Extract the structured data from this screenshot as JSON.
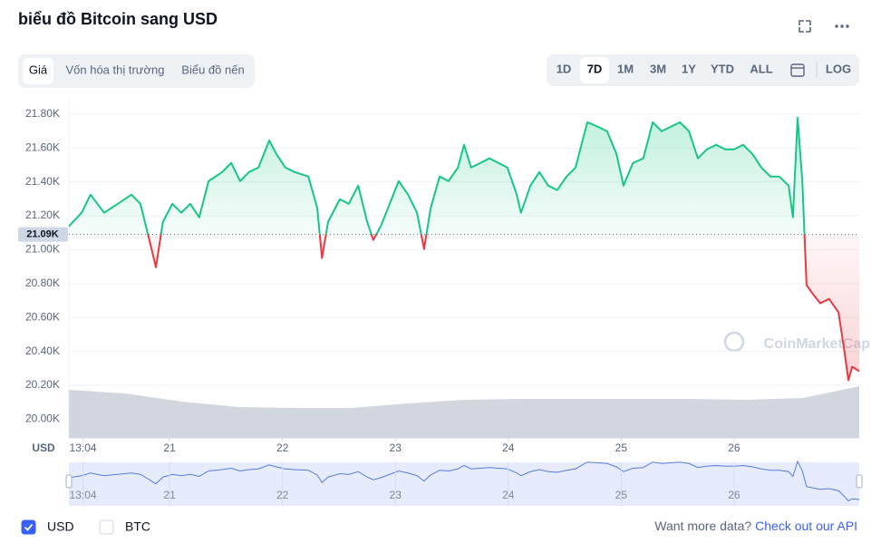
{
  "ui": {
    "title": "biểu đồ Bitcoin sang USD",
    "tabs": [
      "Giá",
      "Vốn hóa thị trường",
      "Biểu đồ nến"
    ],
    "active_tab": 0,
    "ranges": [
      "1D",
      "7D",
      "1M",
      "3M",
      "1Y",
      "YTD",
      "ALL"
    ],
    "active_range": 1,
    "log": "LOG",
    "currencies": [
      {
        "label": "USD",
        "checked": true
      },
      {
        "label": "BTC",
        "checked": false
      }
    ],
    "more_text": "Want more data?",
    "api_link": "Check out our API",
    "watermark": "CoinMarketCap"
  },
  "chart_data": {
    "type": "line",
    "up_color": "#16c784",
    "down_color": "#ea3943",
    "volume_color": "#d1d6df",
    "grid": true,
    "y_axis_label": "USD",
    "baseline": {
      "value": 21090,
      "label": "21.09K"
    },
    "xlim": [
      0,
      168
    ],
    "xticks": [
      {
        "value": 3,
        "label": "13:04"
      },
      {
        "value": 21.4,
        "label": "21"
      },
      {
        "value": 45.4,
        "label": "22"
      },
      {
        "value": 69.4,
        "label": "23"
      },
      {
        "value": 93.4,
        "label": "24"
      },
      {
        "value": 117.4,
        "label": "25"
      },
      {
        "value": 141.4,
        "label": "26"
      }
    ],
    "ylim": [
      19890,
      21885
    ],
    "yticks": [
      {
        "value": 20000,
        "label": "20.00K"
      },
      {
        "value": 20200,
        "label": "20.20K"
      },
      {
        "value": 20400,
        "label": "20.40K"
      },
      {
        "value": 20600,
        "label": "20.60K"
      },
      {
        "value": 20800,
        "label": "20.80K"
      },
      {
        "value": 21000,
        "label": "21.00K"
      },
      {
        "value": 21200,
        "label": "21.20K"
      },
      {
        "value": 21400,
        "label": "21.40K"
      },
      {
        "value": 21600,
        "label": "21.60K"
      },
      {
        "value": 21800,
        "label": "21.80K"
      }
    ],
    "x": [
      0,
      2.7,
      4.6,
      7.5,
      10.4,
      13.3,
      15.2,
      17.1,
      18.5,
      20.0,
      22.0,
      23.9,
      25.8,
      27.7,
      29.7,
      32.6,
      34.5,
      36.4,
      38.3,
      40.3,
      42.6,
      44.1,
      46.0,
      48.0,
      50.9,
      52.8,
      53.8,
      55.1,
      57.6,
      59.5,
      61.5,
      63.4,
      64.7,
      66.3,
      68.2,
      70.1,
      72.1,
      74.0,
      75.5,
      76.9,
      78.8,
      80.7,
      82.7,
      84.0,
      85.5,
      87.5,
      89.4,
      91.3,
      93.2,
      95.2,
      96.1,
      98.1,
      100.0,
      101.9,
      103.8,
      105.8,
      107.7,
      110.2,
      112.5,
      114.4,
      116.4,
      117.9,
      119.9,
      122.1,
      124.1,
      126.0,
      127.9,
      129.9,
      131.8,
      133.7,
      135.6,
      137.6,
      139.5,
      141.4,
      143.3,
      145.3,
      147.2,
      149.1,
      151.0,
      153.0,
      153.9,
      154.9,
      155.9,
      156.8,
      158.2,
      159.7,
      161.6,
      163.6,
      164.9,
      165.7,
      166.5,
      168.0
    ],
    "values": [
      21138,
      21218,
      21325,
      21218,
      21271,
      21325,
      21271,
      21058,
      20897,
      21165,
      21271,
      21218,
      21271,
      21191,
      21405,
      21458,
      21512,
      21405,
      21458,
      21485,
      21645,
      21565,
      21485,
      21458,
      21432,
      21245,
      20951,
      21165,
      21298,
      21271,
      21378,
      21165,
      21058,
      21138,
      21271,
      21405,
      21325,
      21218,
      21004,
      21245,
      21432,
      21405,
      21485,
      21619,
      21485,
      21512,
      21539,
      21512,
      21485,
      21325,
      21218,
      21378,
      21458,
      21378,
      21352,
      21432,
      21485,
      21752,
      21725,
      21699,
      21565,
      21378,
      21512,
      21539,
      21752,
      21699,
      21725,
      21752,
      21699,
      21539,
      21592,
      21619,
      21592,
      21592,
      21619,
      21565,
      21485,
      21432,
      21432,
      21378,
      21191,
      21779,
      21405,
      20791,
      20737,
      20684,
      20710,
      20630,
      20390,
      20230,
      20310,
      20283
    ],
    "volume_x": [
      0,
      12,
      24,
      36,
      48,
      60,
      72,
      84,
      96,
      108,
      120,
      132,
      144,
      156,
      168
    ],
    "volume_values": [
      53,
      49,
      40,
      34,
      33,
      33,
      38,
      42,
      43,
      43,
      43,
      43,
      42,
      44,
      57
    ],
    "volume_ylim": [
      0,
      100
    ]
  }
}
